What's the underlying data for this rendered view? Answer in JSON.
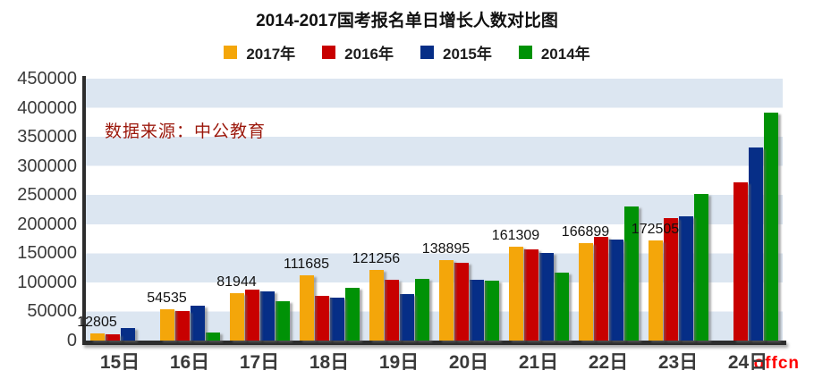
{
  "title": "2014-2017国考报名单日增长人数对比图",
  "watermark": "数据来源：中公教育",
  "logo": "offcn",
  "colors": {
    "band": "#DCE6F1",
    "axis": "#2d2d2d",
    "watermark_red": "#9B170B",
    "logo_red": "#FF0000"
  },
  "chart_data": {
    "type": "bar",
    "title": "2014-2017国考报名单日增长人数对比图",
    "categories": [
      "15日",
      "16日",
      "17日",
      "18日",
      "19日",
      "20日",
      "21日",
      "22日",
      "23日",
      "24日"
    ],
    "series": [
      {
        "name": "2017年",
        "color": "#F4A60A",
        "labeled": true,
        "values": [
          12805,
          54535,
          81944,
          111685,
          121256,
          138895,
          161309,
          166899,
          172505,
          null
        ]
      },
      {
        "name": "2016年",
        "color": "#C80000",
        "labeled": false,
        "values": [
          11000,
          50000,
          87000,
          77000,
          104000,
          133000,
          156000,
          178000,
          210000,
          272000
        ]
      },
      {
        "name": "2015年",
        "color": "#062E87",
        "labeled": false,
        "values": [
          21000,
          60000,
          84000,
          74000,
          80000,
          105000,
          151000,
          174000,
          213000,
          331000
        ]
      },
      {
        "name": "2014年",
        "color": "#009206",
        "labeled": false,
        "values": [
          null,
          14000,
          67000,
          90000,
          106000,
          103000,
          117000,
          230000,
          252000,
          392000
        ]
      }
    ],
    "xlabel": "",
    "ylabel": "",
    "ylim": [
      0,
      450000
    ],
    "ytick_step": 50000,
    "grid": "horizontal-bands",
    "legend_position": "top",
    "value_labels_series": "2017年"
  }
}
